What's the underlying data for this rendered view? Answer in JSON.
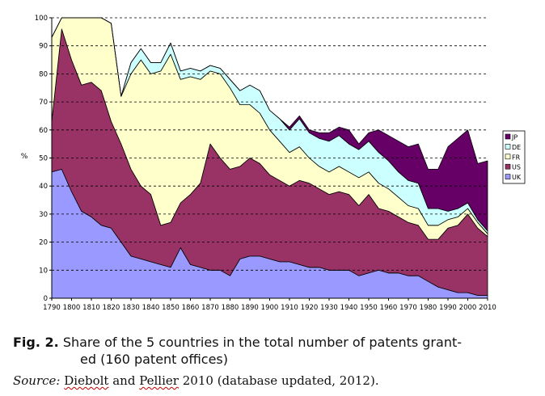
{
  "chart_data": {
    "type": "area",
    "stacked": true,
    "ylabel": "%",
    "ylim": [
      0,
      100
    ],
    "yticks": [
      0,
      10,
      20,
      30,
      40,
      50,
      60,
      70,
      80,
      90,
      100
    ],
    "xlim": [
      1790,
      2010
    ],
    "xticks": [
      1790,
      1800,
      1810,
      1820,
      1830,
      1840,
      1850,
      1860,
      1870,
      1880,
      1890,
      1900,
      1910,
      1920,
      1930,
      1940,
      1950,
      1960,
      1970,
      1980,
      1990,
      2000,
      2010
    ],
    "grid": "horizontal dashed",
    "legend_position": "right",
    "colors": {
      "UK": "#9999ff",
      "US": "#993366",
      "FR": "#ffffcc",
      "DE": "#ccffff",
      "JP": "#660066"
    },
    "legend": [
      "JP",
      "DE",
      "FR",
      "US",
      "UK"
    ],
    "x": [
      1790,
      1795,
      1800,
      1805,
      1810,
      1815,
      1820,
      1825,
      1830,
      1835,
      1840,
      1845,
      1850,
      1855,
      1860,
      1865,
      1870,
      1875,
      1880,
      1885,
      1890,
      1895,
      1900,
      1905,
      1910,
      1915,
      1920,
      1925,
      1930,
      1935,
      1940,
      1945,
      1950,
      1955,
      1960,
      1965,
      1970,
      1975,
      1980,
      1985,
      1990,
      1995,
      2000,
      2005,
      2010
    ],
    "series": [
      {
        "name": "UK",
        "values": [
          45,
          46,
          38,
          31,
          29,
          26,
          25,
          20,
          15,
          14,
          13,
          12,
          11,
          18,
          12,
          11,
          10,
          10,
          8,
          14,
          15,
          15,
          14,
          13,
          13,
          12,
          11,
          11,
          10,
          10,
          10,
          8,
          9,
          10,
          9,
          9,
          8,
          8,
          6,
          4,
          3,
          2,
          2,
          1,
          1
        ]
      },
      {
        "name": "US",
        "values": [
          18,
          50,
          47,
          45,
          48,
          48,
          38,
          35,
          31,
          26,
          24,
          14,
          16,
          16,
          25,
          30,
          45,
          40,
          38,
          33,
          35,
          33,
          30,
          29,
          27,
          30,
          30,
          28,
          27,
          28,
          27,
          25,
          28,
          22,
          22,
          20,
          19,
          18,
          15,
          17,
          22,
          24,
          28,
          24,
          21
        ]
      },
      {
        "name": "FR",
        "values": [
          30,
          4,
          15,
          24,
          23,
          26,
          35,
          17,
          34,
          45,
          43,
          55,
          60,
          44,
          42,
          37,
          26,
          30,
          29,
          22,
          19,
          18,
          16,
          14,
          12,
          12,
          9,
          8,
          8,
          9,
          8,
          10,
          8,
          9,
          8,
          7,
          6,
          6,
          5,
          5,
          3,
          3,
          2,
          2,
          1
        ]
      },
      {
        "name": "DE",
        "values": [
          0,
          0,
          0,
          0,
          0,
          0,
          0,
          0,
          4,
          4,
          4,
          3,
          4,
          3,
          3,
          3,
          2,
          2,
          3,
          5,
          7,
          8,
          7,
          8,
          8,
          10,
          9,
          10,
          11,
          11,
          10,
          10,
          11,
          11,
          10,
          9,
          9,
          9,
          6,
          6,
          3,
          3,
          2,
          1,
          1
        ]
      },
      {
        "name": "JP",
        "values": [
          0,
          0,
          0,
          0,
          0,
          0,
          0,
          0,
          0,
          0,
          0,
          0,
          0,
          0,
          0,
          0,
          0,
          0,
          0,
          0,
          0,
          0,
          0,
          0,
          1,
          1,
          1,
          2,
          3,
          3,
          5,
          2,
          3,
          8,
          9,
          11,
          12,
          14,
          14,
          14,
          23,
          25,
          26,
          20,
          25
        ]
      }
    ]
  },
  "caption": {
    "label": "Fig. 2.",
    "text_line1": "Share of the 5 countries in the total number of patents grant-",
    "text_line2": "ed (160 patent offices)"
  },
  "source": {
    "label": "Source:",
    "author1": "Diebolt",
    "and": "and",
    "author2": "Pellier",
    "rest": "2010 (database updated, 2012)."
  }
}
